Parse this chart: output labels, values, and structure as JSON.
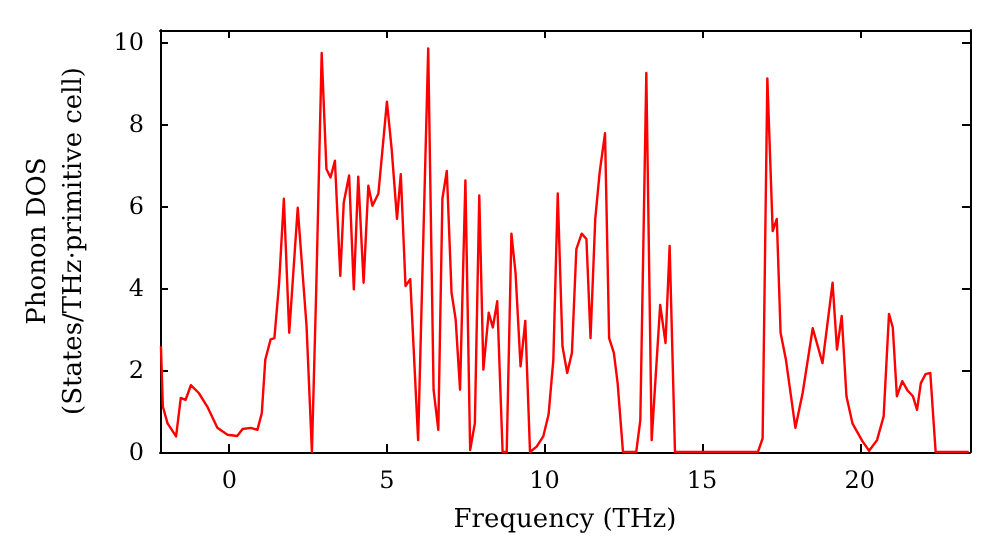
{
  "chart_data": {
    "type": "line",
    "xlabel": "Frequency (THz)",
    "ylabel": "Phonon DOS\n(States/THz·primitive cell)",
    "xlim": [
      -2.2,
      23.5
    ],
    "xticks": [
      0,
      5,
      10,
      15,
      20
    ],
    "ylim": [
      0,
      10.3
    ],
    "yticks": [
      0,
      2,
      4,
      6,
      8,
      10
    ],
    "marker": "none",
    "line_style": "solid",
    "series": [
      {
        "color": "#ff0000",
        "x": [
          -2.17,
          -2.11,
          -1.96,
          -1.69,
          -1.54,
          -1.39,
          -1.22,
          -0.97,
          -0.7,
          -0.38,
          -0.06,
          0.25,
          0.42,
          0.68,
          0.89,
          1.03,
          1.14,
          1.31,
          1.43,
          1.58,
          1.73,
          1.9,
          2.17,
          2.45,
          2.62,
          2.76,
          2.93,
          3.08,
          3.21,
          3.35,
          3.52,
          3.63,
          3.8,
          3.95,
          4.09,
          4.26,
          4.41,
          4.54,
          4.73,
          5.0,
          5.15,
          5.32,
          5.44,
          5.59,
          5.74,
          5.99,
          6.31,
          6.48,
          6.63,
          6.76,
          6.9,
          7.05,
          7.18,
          7.32,
          7.49,
          7.64,
          7.79,
          7.93,
          8.06,
          8.23,
          8.36,
          8.5,
          8.67,
          8.8,
          8.95,
          9.08,
          9.24,
          9.39,
          9.54,
          9.75,
          9.96,
          10.13,
          10.28,
          10.42,
          10.57,
          10.72,
          10.87,
          11.01,
          11.18,
          11.33,
          11.46,
          11.61,
          11.75,
          11.92,
          12.05,
          12.2,
          12.32,
          12.49,
          12.91,
          13.04,
          13.23,
          13.4,
          13.67,
          13.84,
          13.97,
          14.14,
          16.77,
          16.92,
          17.07,
          17.24,
          17.37,
          17.49,
          17.66,
          17.96,
          18.19,
          18.51,
          18.82,
          19.14,
          19.28,
          19.43,
          19.58,
          19.77,
          20.09,
          20.3,
          20.55,
          20.76,
          20.93,
          21.05,
          21.18,
          21.35,
          21.52,
          21.69,
          21.82,
          21.94,
          22.09,
          22.24,
          22.41,
          23.46
        ],
        "values": [
          2.58,
          1.11,
          0.7,
          0.38,
          1.32,
          1.27,
          1.63,
          1.44,
          1.11,
          0.59,
          0.42,
          0.39,
          0.56,
          0.59,
          0.54,
          0.95,
          2.25,
          2.75,
          2.78,
          4.13,
          6.18,
          2.91,
          5.96,
          3.07,
          0,
          4.05,
          9.74,
          6.91,
          6.7,
          7.11,
          4.3,
          6.09,
          6.75,
          3.97,
          6.72,
          4.13,
          6.5,
          6.01,
          6.31,
          8.55,
          7.4,
          5.69,
          6.78,
          4.05,
          4.22,
          0.29,
          9.85,
          1.52,
          0.54,
          6.18,
          6.86,
          3.89,
          3.24,
          1.52,
          6.63,
          0.05,
          0.7,
          6.26,
          2.01,
          3.4,
          3.04,
          3.68,
          0,
          0,
          5.33,
          4.38,
          2.09,
          3.2,
          0,
          0.13,
          0.38,
          0.92,
          2.25,
          6.31,
          2.58,
          1.93,
          2.42,
          4.95,
          5.33,
          5.2,
          2.78,
          5.69,
          6.83,
          7.78,
          2.78,
          2.42,
          1.68,
          0,
          0,
          0.78,
          9.25,
          0.29,
          3.59,
          2.66,
          5.03,
          0,
          0,
          0.33,
          9.12,
          5.39,
          5.69,
          2.91,
          2.25,
          0.59,
          1.44,
          3.02,
          2.17,
          4.13,
          2.5,
          3.32,
          1.36,
          0.7,
          0.26,
          0.03,
          0.29,
          0.87,
          3.37,
          3.04,
          1.36,
          1.73,
          1.5,
          1.36,
          1.03,
          1.68,
          1.9,
          1.93,
          0,
          0
        ]
      }
    ]
  }
}
